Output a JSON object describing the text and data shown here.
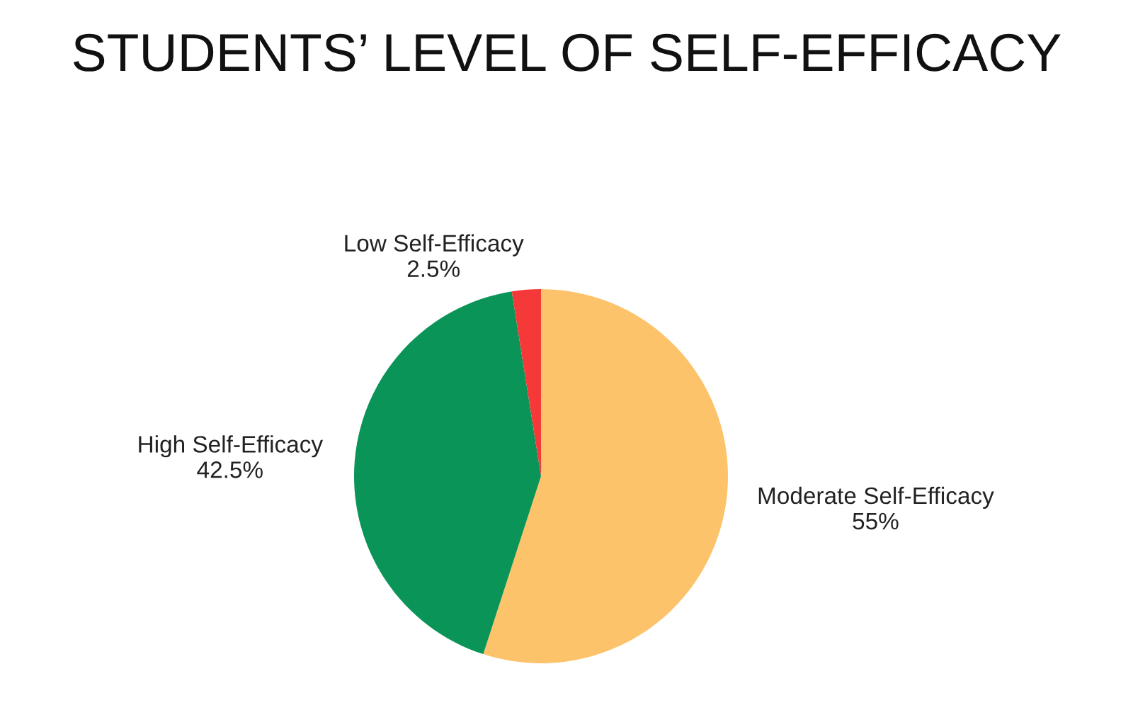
{
  "chart_data": {
    "type": "pie",
    "title": "STUDENTS’ LEVEL OF SELF-EFFICACY",
    "categories": [
      "Moderate Self-Efficacy",
      "High Self-Efficacy",
      "Low Self-Efficacy"
    ],
    "values": [
      55,
      42.5,
      2.5
    ],
    "value_labels": [
      "55%",
      "42.5%",
      "2.5%"
    ],
    "colors": [
      "#fdc36a",
      "#0a9457",
      "#f53838"
    ],
    "legend": false
  }
}
